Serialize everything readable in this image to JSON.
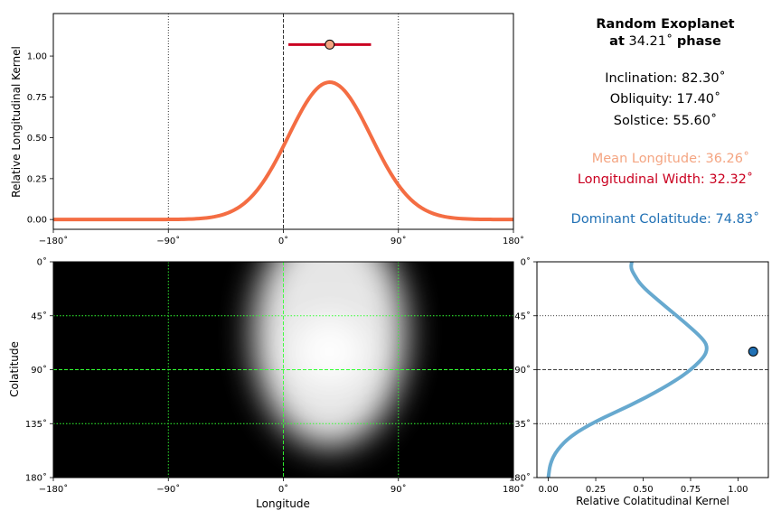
{
  "info_panel": {
    "title_line1": "Random Exoplanet",
    "title_line2_prefix": "at",
    "title_line2_value": "34.21˚",
    "title_line2_suffix": "phase",
    "inclination": "Inclination: 82.30˚",
    "obliquity": "Obliquity: 17.40˚",
    "solstice": "Solstice: 55.60˚",
    "mean_longitude": "Mean Longitude: 36.26˚",
    "longitudinal_width": "Longitudinal Width: 32.32˚",
    "dominant_colatitude": "Dominant Colatitude: 74.83˚",
    "colors": {
      "mean_longitude": "#f4a582",
      "longitudinal_width": "#ca0020",
      "dominant_colatitude": "#2171b5"
    }
  },
  "chart_data": [
    {
      "id": "longitudinal_kernel",
      "type": "line",
      "xlabel": "",
      "ylabel": "Relative Longitudinal Kernel",
      "xlim": [
        -180,
        180
      ],
      "ylim": [
        -0.06,
        1.26
      ],
      "xticks": [
        -180,
        -90,
        0,
        90,
        180
      ],
      "xtick_labels": [
        "−180˚",
        "−90˚",
        "0˚",
        "90˚",
        "180˚"
      ],
      "yticks": [
        0,
        0.25,
        0.5,
        0.75,
        1.0
      ],
      "ytick_labels": [
        "0.00",
        "0.25",
        "0.50",
        "0.75",
        "1.00"
      ],
      "vlines": [
        {
          "x": -90,
          "style": "dotted"
        },
        {
          "x": 0,
          "style": "dashed"
        },
        {
          "x": 90,
          "style": "dotted"
        }
      ],
      "series": [
        {
          "color": "#f46d43",
          "gaussian": {
            "amplitude": 0.84,
            "mean": 36.26,
            "sigma": 32.32
          }
        }
      ],
      "errorbar": {
        "x": 36.26,
        "y": 1.07,
        "xmin": 3.94,
        "xmax": 68.58,
        "line_color": "#ca0020",
        "marker_color": "#f4a582"
      }
    },
    {
      "id": "kernel_map",
      "type": "heatmap",
      "xlabel": "Longitude",
      "ylabel": "Colatitude",
      "xlim": [
        -180,
        180
      ],
      "ylim": [
        180,
        0
      ],
      "xticks": [
        -180,
        -90,
        0,
        90,
        180
      ],
      "xtick_labels": [
        "−180˚",
        "−90˚",
        "0˚",
        "90˚",
        "180˚"
      ],
      "yticks": [
        0,
        45,
        90,
        135,
        180
      ],
      "ytick_labels": [
        "0˚",
        "45˚",
        "90˚",
        "135˚",
        "180˚"
      ],
      "grid_lines": {
        "x": [
          -90,
          0,
          90
        ],
        "y": [
          45,
          90,
          135
        ],
        "color": "#33ff33"
      },
      "peak": {
        "longitude": 36.26,
        "colatitude": 74.83
      },
      "colormap": "gray"
    },
    {
      "id": "colatitudinal_kernel",
      "type": "line",
      "xlabel": "Relative Colatitudinal Kernel",
      "ylabel": "",
      "xlim": [
        -0.06,
        1.16
      ],
      "ylim": [
        180,
        0
      ],
      "xticks": [
        0,
        0.25,
        0.5,
        0.75,
        1.0
      ],
      "xtick_labels": [
        "0.00",
        "0.25",
        "0.50",
        "0.75",
        "1.00"
      ],
      "yticks": [
        0,
        45,
        90,
        135,
        180
      ],
      "ytick_labels": [
        "0˚",
        "45˚",
        "90˚",
        "135˚",
        "180˚"
      ],
      "hlines": [
        {
          "y": 45,
          "style": "dotted"
        },
        {
          "y": 90,
          "style": "dashed"
        },
        {
          "y": 135,
          "style": "dotted"
        }
      ],
      "series": [
        {
          "color": "#67a9cf",
          "points": [
            [
              0.44,
              0
            ],
            [
              0.435,
              5
            ],
            [
              0.45,
              10
            ],
            [
              0.49,
              20
            ],
            [
              0.6,
              35
            ],
            [
              0.73,
              52
            ],
            [
              0.82,
              65
            ],
            [
              0.84,
              72
            ],
            [
              0.82,
              80
            ],
            [
              0.73,
              93
            ],
            [
              0.6,
              106
            ],
            [
              0.43,
              120
            ],
            [
              0.25,
              133
            ],
            [
              0.12,
              145
            ],
            [
              0.045,
              157
            ],
            [
              0.01,
              168
            ],
            [
              0.0,
              180
            ]
          ]
        }
      ],
      "marker": {
        "x": 1.08,
        "y": 74.83,
        "color": "#2171b5"
      }
    }
  ]
}
